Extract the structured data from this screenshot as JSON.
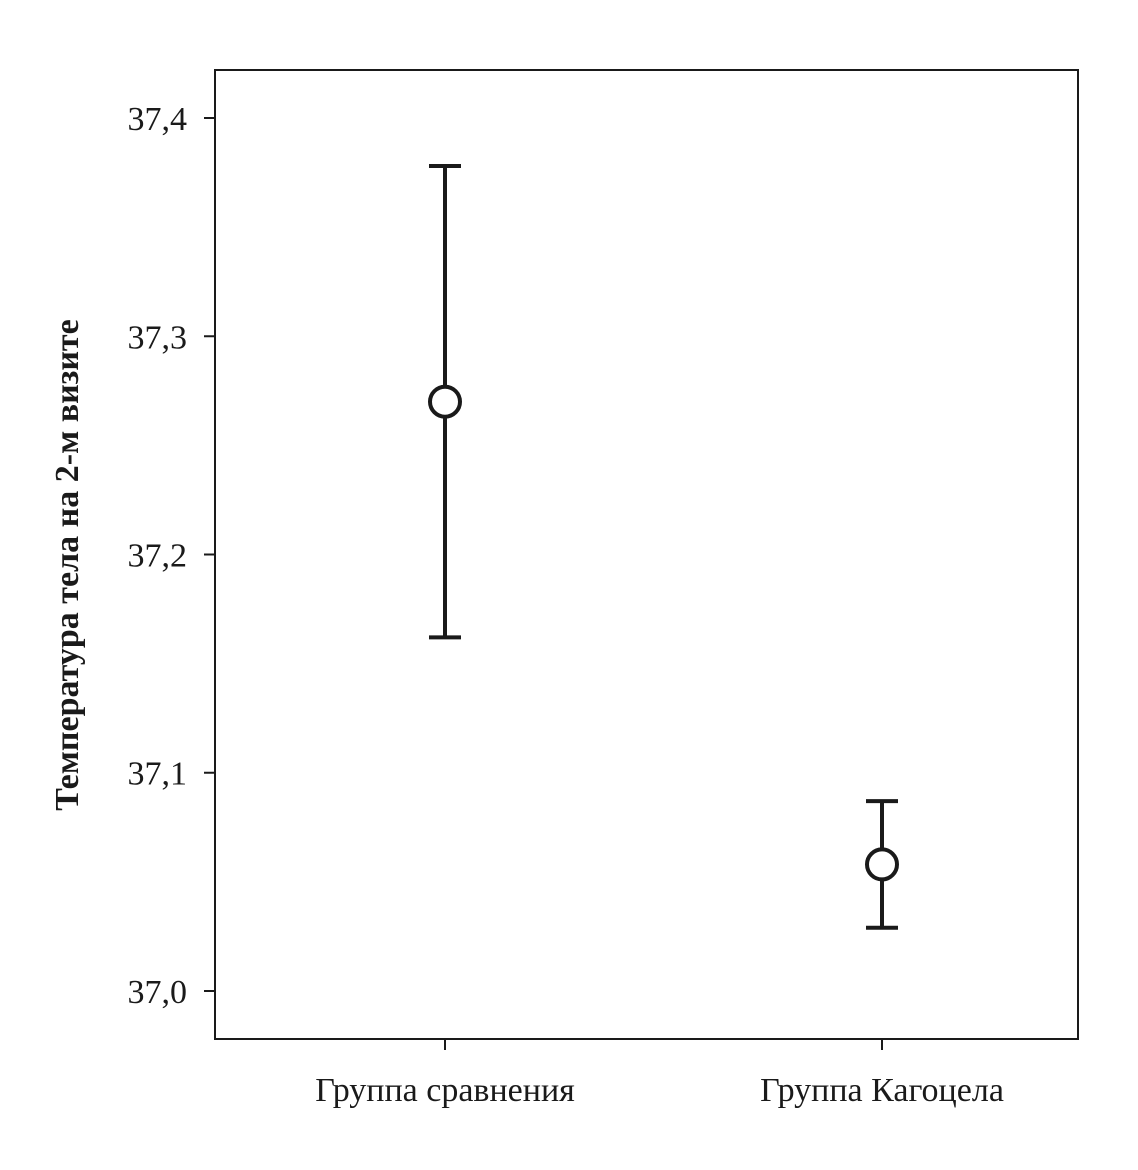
{
  "chart_data": {
    "type": "errorbar",
    "title": "",
    "xlabel": "",
    "ylabel": "Температура тела на 2-м визите",
    "categories": [
      "Группа сравнения",
      "Группа Кагоцела"
    ],
    "means": [
      37.27,
      37.058
    ],
    "lower": [
      37.162,
      37.029
    ],
    "upper": [
      37.378,
      37.087
    ],
    "ylim": [
      36.978,
      37.422
    ],
    "yticks": [
      37.0,
      37.1,
      37.2,
      37.3,
      37.4
    ],
    "ytick_labels": [
      "37,0",
      "37,1",
      "37,2",
      "37,3",
      "37,4"
    ],
    "marker": "open-circle",
    "grid": false,
    "legend": "none",
    "color": "#1a1a1a"
  }
}
